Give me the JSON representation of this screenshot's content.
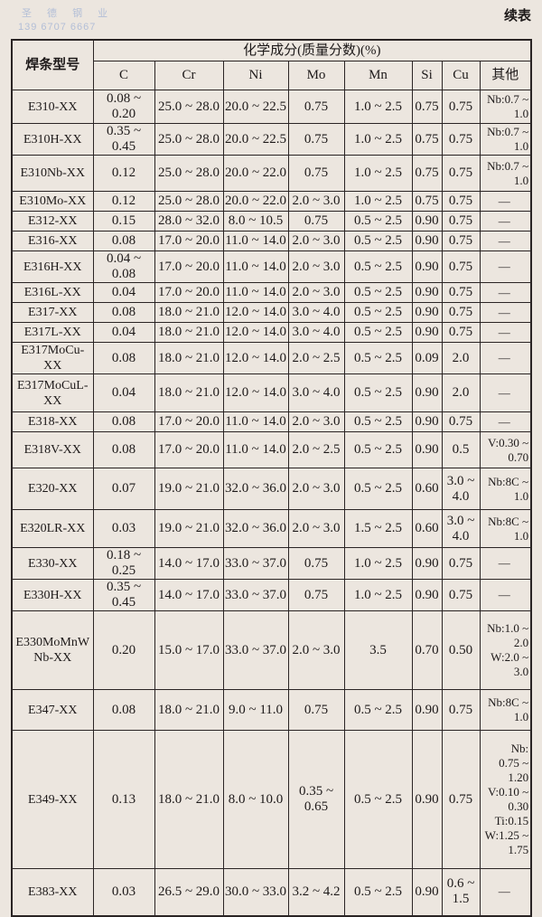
{
  "watermark": {
    "line1": "圣 德 钢 业",
    "line2": "139 6707 6667"
  },
  "continued_label": "续表",
  "table": {
    "type_header": "焊条型号",
    "group_header": "化学成分(质量分数)(%)",
    "columns": [
      "C",
      "Cr",
      "Ni",
      "Mo",
      "Mn",
      "Si",
      "Cu",
      "其他"
    ],
    "rows": [
      [
        "E310-XX",
        "0.08 ~ 0.20",
        "25.0 ~ 28.0",
        "20.0 ~ 22.5",
        "0.75",
        "1.0 ~ 2.5",
        "0.75",
        "0.75",
        "Nb:0.7 ~\n1.0"
      ],
      [
        "E310H-XX",
        "0.35 ~ 0.45",
        "25.0 ~ 28.0",
        "20.0 ~ 22.5",
        "0.75",
        "1.0 ~ 2.5",
        "0.75",
        "0.75",
        "Nb:0.7 ~\n1.0"
      ],
      [
        "E310Nb-XX",
        "0.12",
        "25.0 ~ 28.0",
        "20.0 ~ 22.0",
        "0.75",
        "1.0 ~ 2.5",
        "0.75",
        "0.75",
        "Nb:0.7 ~\n1.0"
      ],
      [
        "E310Mo-XX",
        "0.12",
        "25.0 ~ 28.0",
        "20.0 ~ 22.0",
        "2.0 ~ 3.0",
        "1.0 ~ 2.5",
        "0.75",
        "0.75",
        "—"
      ],
      [
        "E312-XX",
        "0.15",
        "28.0 ~ 32.0",
        "8.0 ~ 10.5",
        "0.75",
        "0.5 ~ 2.5",
        "0.90",
        "0.75",
        "—"
      ],
      [
        "E316-XX",
        "0.08",
        "17.0 ~ 20.0",
        "11.0 ~ 14.0",
        "2.0 ~ 3.0",
        "0.5 ~ 2.5",
        "0.90",
        "0.75",
        "—"
      ],
      [
        "E316H-XX",
        "0.04 ~ 0.08",
        "17.0 ~ 20.0",
        "11.0 ~ 14.0",
        "2.0 ~ 3.0",
        "0.5 ~ 2.5",
        "0.90",
        "0.75",
        "—"
      ],
      [
        "E316L-XX",
        "0.04",
        "17.0 ~ 20.0",
        "11.0 ~ 14.0",
        "2.0 ~ 3.0",
        "0.5 ~ 2.5",
        "0.90",
        "0.75",
        "—"
      ],
      [
        "E317-XX",
        "0.08",
        "18.0 ~ 21.0",
        "12.0 ~ 14.0",
        "3.0 ~ 4.0",
        "0.5 ~ 2.5",
        "0.90",
        "0.75",
        "—"
      ],
      [
        "E317L-XX",
        "0.04",
        "18.0 ~ 21.0",
        "12.0 ~ 14.0",
        "3.0 ~ 4.0",
        "0.5 ~ 2.5",
        "0.90",
        "0.75",
        "—"
      ],
      [
        "E317MoCu-XX",
        "0.08",
        "18.0 ~ 21.0",
        "12.0 ~ 14.0",
        "2.0 ~ 2.5",
        "0.5 ~ 2.5",
        "0.09",
        "2.0",
        "—"
      ],
      [
        "E317MoCuL-\nXX",
        "0.04",
        "18.0 ~ 21.0",
        "12.0 ~ 14.0",
        "3.0 ~ 4.0",
        "0.5 ~ 2.5",
        "0.90",
        "2.0",
        "—"
      ],
      [
        "E318-XX",
        "0.08",
        "17.0 ~ 20.0",
        "11.0 ~ 14.0",
        "2.0 ~ 3.0",
        "0.5 ~ 2.5",
        "0.90",
        "0.75",
        "—"
      ],
      [
        "E318V-XX",
        "0.08",
        "17.0 ~ 20.0",
        "11.0 ~ 14.0",
        "2.0 ~ 2.5",
        "0.5 ~ 2.5",
        "0.90",
        "0.5",
        "V:0.30 ~\n0.70"
      ],
      [
        "E320-XX",
        "0.07",
        "19.0 ~ 21.0",
        "32.0 ~ 36.0",
        "2.0 ~ 3.0",
        "0.5 ~ 2.5",
        "0.60",
        "3.0 ~\n4.0",
        "Nb:8C ~\n1.0"
      ],
      [
        "E320LR-XX",
        "0.03",
        "19.0 ~ 21.0",
        "32.0 ~ 36.0",
        "2.0 ~ 3.0",
        "1.5 ~ 2.5",
        "0.60",
        "3.0 ~\n4.0",
        "Nb:8C ~\n1.0"
      ],
      [
        "E330-XX",
        "0.18 ~ 0.25",
        "14.0 ~ 17.0",
        "33.0 ~ 37.0",
        "0.75",
        "1.0 ~ 2.5",
        "0.90",
        "0.75",
        "—"
      ],
      [
        "E330H-XX",
        "0.35 ~ 0.45",
        "14.0 ~ 17.0",
        "33.0 ~ 37.0",
        "0.75",
        "1.0 ~ 2.5",
        "0.90",
        "0.75",
        "—"
      ],
      [
        "E330MoMnW\nNb-XX",
        "0.20",
        "15.0 ~ 17.0",
        "33.0 ~ 37.0",
        "2.0 ~ 3.0",
        "3.5",
        "0.70",
        "0.50",
        "Nb:1.0 ~\n2.0\nW:2.0 ~\n3.0"
      ],
      [
        "E347-XX",
        "0.08",
        "18.0 ~ 21.0",
        "9.0 ~ 11.0",
        "0.75",
        "0.5 ~ 2.5",
        "0.90",
        "0.75",
        "Nb:8C ~\n1.0"
      ],
      [
        "E349-XX",
        "0.13",
        "18.0 ~ 21.0",
        "8.0 ~ 10.0",
        "0.35 ~\n0.65",
        "0.5 ~ 2.5",
        "0.90",
        "0.75",
        "Nb:\n0.75 ~\n1.20\nV:0.10 ~\n0.30\nTi:0.15\nW:1.25 ~\n1.75"
      ],
      [
        "E383-XX",
        "0.03",
        "26.5 ~ 29.0",
        "30.0 ~ 33.0",
        "3.2 ~ 4.2",
        "0.5 ~ 2.5",
        "0.90",
        "0.6 ~\n1.5",
        "—"
      ]
    ]
  }
}
